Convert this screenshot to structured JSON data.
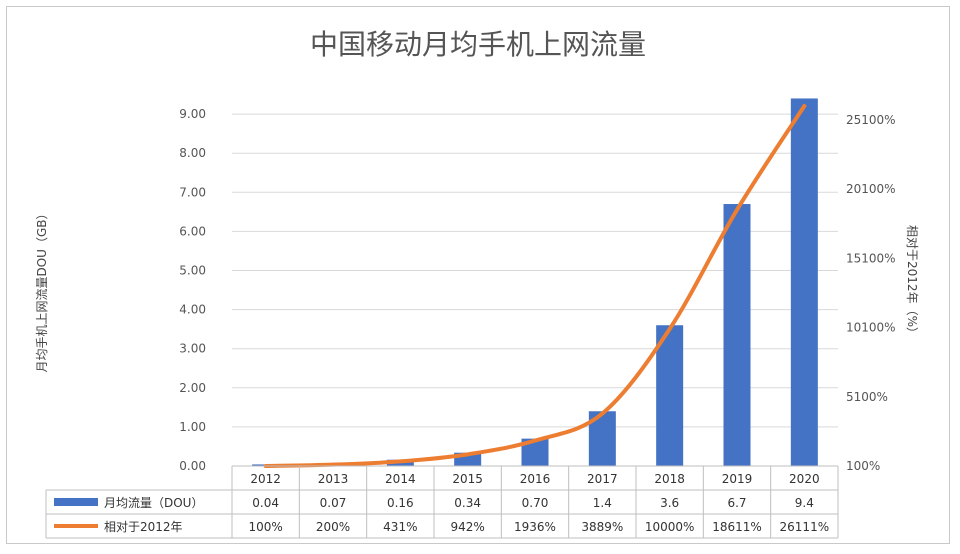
{
  "chart_data": {
    "type": "bar",
    "title": "中国移动月均手机上网流量",
    "categories": [
      "2012",
      "2013",
      "2014",
      "2015",
      "2016",
      "2017",
      "2018",
      "2019",
      "2020"
    ],
    "series": [
      {
        "name": "月均流量（DOU）",
        "type": "bar",
        "axis": "left",
        "color": "#4472C4",
        "values": [
          0.04,
          0.07,
          0.16,
          0.34,
          0.7,
          1.4,
          3.6,
          6.7,
          9.4
        ],
        "table_labels": [
          "0.04",
          "0.07",
          "0.16",
          "0.34",
          "0.70",
          "1.4",
          "3.6",
          "6.7",
          "9.4"
        ]
      },
      {
        "name": "相对于2012年",
        "type": "line",
        "axis": "right",
        "color": "#ED7D31",
        "values": [
          100,
          200,
          431,
          942,
          1936,
          3889,
          10000,
          18611,
          26111
        ],
        "table_labels": [
          "100%",
          "200%",
          "431%",
          "942%",
          "1936%",
          "3889%",
          "10000%",
          "18611%",
          "26111%"
        ]
      }
    ],
    "y_left": {
      "label": "月均手机上网流量DOU（GB）",
      "ylim": [
        0,
        9
      ],
      "ticks": [
        0,
        1,
        2,
        3,
        4,
        5,
        6,
        7,
        8,
        9
      ],
      "tick_labels": [
        "0.00",
        "1.00",
        "2.00",
        "3.00",
        "4.00",
        "5.00",
        "6.00",
        "7.00",
        "8.00",
        "9.00"
      ]
    },
    "y_right": {
      "label": "相对于2012年（%）",
      "ylim": [
        100,
        25855
      ],
      "ticks": [
        100,
        5100,
        10100,
        15100,
        20100,
        25100
      ],
      "tick_labels": [
        "100%",
        "5100%",
        "10100%",
        "15100%",
        "20100%",
        "25100%"
      ]
    },
    "grid": true,
    "legend": "data-table"
  }
}
